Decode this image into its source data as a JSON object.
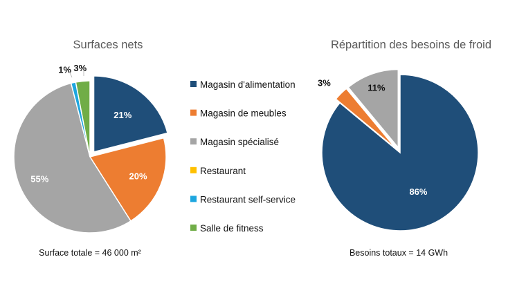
{
  "legend": [
    {
      "label": "Magasin d'alimentation",
      "color": "#1F4E79"
    },
    {
      "label": "Magasin de meubles",
      "color": "#ED7D31"
    },
    {
      "label": "Magasin spécialisé",
      "color": "#A5A5A5"
    },
    {
      "label": "Restaurant",
      "color": "#FFC000"
    },
    {
      "label": "Restaurant self-service",
      "color": "#1DA6DF"
    },
    {
      "label": "Salle de fitness",
      "color": "#70AD47"
    }
  ],
  "chart_data": [
    {
      "type": "pie",
      "title": "Surfaces nets",
      "footnote": "Surface totale = 46 000 m²",
      "exploded": [
        "Magasin d'alimentation"
      ],
      "slices": [
        {
          "category": "Magasin d'alimentation",
          "value": 21,
          "label": "21%"
        },
        {
          "category": "Magasin de meubles",
          "value": 20,
          "label": "20%"
        },
        {
          "category": "Magasin spécialisé",
          "value": 55,
          "label": "55%"
        },
        {
          "category": "Restaurant",
          "value": 0,
          "label": ""
        },
        {
          "category": "Restaurant self-service",
          "value": 1,
          "label": "1%"
        },
        {
          "category": "Salle de fitness",
          "value": 3,
          "label": "3%"
        }
      ]
    },
    {
      "type": "pie",
      "title": "Répartition des besoins de froid",
      "footnote": "Besoins totaux = 14 GWh",
      "exploded": [
        "Magasin de meubles",
        "Magasin spécialisé"
      ],
      "slices": [
        {
          "category": "Magasin d'alimentation",
          "value": 86,
          "label": "86%"
        },
        {
          "category": "Magasin de meubles",
          "value": 3,
          "label": "3%"
        },
        {
          "category": "Magasin spécialisé",
          "value": 11,
          "label": "11%"
        }
      ]
    }
  ]
}
